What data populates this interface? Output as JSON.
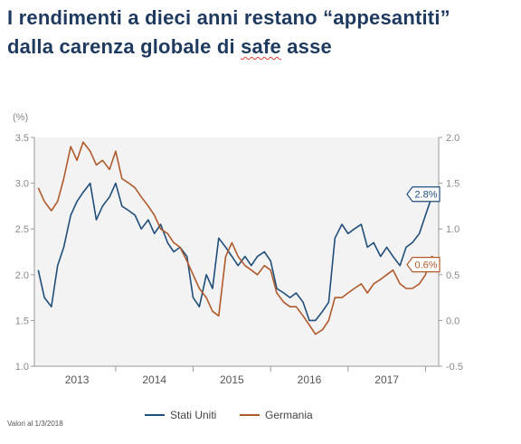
{
  "headline": {
    "line1": "I rendimenti a dieci anni restano “appesantiti”",
    "line2_part1": "dalla carenza globale di ",
    "line2_part2": "safe",
    "line2_part3": " asse"
  },
  "colors": {
    "title": "#1f3a5f",
    "us": "#1f4e79",
    "de": "#b05a2b",
    "plot_bg": "#f3f3f3",
    "axis": "#9a9a9a"
  },
  "chart_data": {
    "type": "line",
    "left_axis_unit": "(%)",
    "ylim_left": [
      1.0,
      3.5
    ],
    "ylim_right": [
      -0.5,
      2.0
    ],
    "left_ticks": [
      "3.5",
      "3.0",
      "2.5",
      "2.0",
      "1.5",
      "1.0"
    ],
    "right_ticks": [
      "2.0",
      "1.5",
      "1.0",
      "0.5",
      "0.0",
      "-0.5"
    ],
    "x_ticks": [
      "2013",
      "2014",
      "2015",
      "2016",
      "2017"
    ],
    "x_range": [
      2012.95,
      2018.17
    ],
    "grid": false,
    "legend_position": "bottom",
    "footnote": "Valori al 1/3/2018",
    "series": [
      {
        "name": "Stati Uniti",
        "axis": "left",
        "end_label": "2.8%",
        "x": [
          2013.0,
          2013.08,
          2013.17,
          2013.25,
          2013.33,
          2013.42,
          2013.5,
          2013.58,
          2013.67,
          2013.75,
          2013.83,
          2013.92,
          2014.0,
          2014.08,
          2014.17,
          2014.25,
          2014.33,
          2014.42,
          2014.5,
          2014.58,
          2014.67,
          2014.75,
          2014.83,
          2014.92,
          2015.0,
          2015.08,
          2015.17,
          2015.25,
          2015.33,
          2015.42,
          2015.5,
          2015.58,
          2015.67,
          2015.75,
          2015.83,
          2015.92,
          2016.0,
          2016.08,
          2016.17,
          2016.25,
          2016.33,
          2016.42,
          2016.5,
          2016.58,
          2016.67,
          2016.75,
          2016.83,
          2016.92,
          2017.0,
          2017.08,
          2017.17,
          2017.25,
          2017.33,
          2017.42,
          2017.5,
          2017.58,
          2017.67,
          2017.75,
          2017.83,
          2017.92,
          2018.0,
          2018.08,
          2018.17
        ],
        "values": [
          2.05,
          1.75,
          1.65,
          2.1,
          2.3,
          2.65,
          2.8,
          2.9,
          3.0,
          2.6,
          2.75,
          2.85,
          3.0,
          2.75,
          2.7,
          2.65,
          2.5,
          2.6,
          2.45,
          2.55,
          2.35,
          2.25,
          2.3,
          2.2,
          1.75,
          1.65,
          2.0,
          1.85,
          2.4,
          2.3,
          2.2,
          2.1,
          2.2,
          2.1,
          2.2,
          2.25,
          2.15,
          1.85,
          1.8,
          1.75,
          1.8,
          1.7,
          1.5,
          1.5,
          1.6,
          1.7,
          2.4,
          2.55,
          2.45,
          2.5,
          2.55,
          2.3,
          2.35,
          2.2,
          2.3,
          2.2,
          2.1,
          2.3,
          2.35,
          2.45,
          2.65,
          2.85,
          2.9
        ]
      },
      {
        "name": "Germania",
        "axis": "right",
        "end_label": "0.6%",
        "x": [
          2013.0,
          2013.08,
          2013.17,
          2013.25,
          2013.33,
          2013.42,
          2013.5,
          2013.58,
          2013.67,
          2013.75,
          2013.83,
          2013.92,
          2014.0,
          2014.08,
          2014.17,
          2014.25,
          2014.33,
          2014.42,
          2014.5,
          2014.58,
          2014.67,
          2014.75,
          2014.83,
          2014.92,
          2015.0,
          2015.08,
          2015.17,
          2015.25,
          2015.33,
          2015.42,
          2015.5,
          2015.58,
          2015.67,
          2015.75,
          2015.83,
          2015.92,
          2016.0,
          2016.08,
          2016.17,
          2016.25,
          2016.33,
          2016.42,
          2016.5,
          2016.58,
          2016.67,
          2016.75,
          2016.83,
          2016.92,
          2017.0,
          2017.08,
          2017.17,
          2017.25,
          2017.33,
          2017.42,
          2017.5,
          2017.58,
          2017.67,
          2017.75,
          2017.83,
          2017.92,
          2018.0,
          2018.08,
          2018.17
        ],
        "values": [
          1.45,
          1.3,
          1.2,
          1.3,
          1.55,
          1.9,
          1.75,
          1.95,
          1.85,
          1.7,
          1.75,
          1.65,
          1.85,
          1.55,
          1.5,
          1.45,
          1.35,
          1.25,
          1.15,
          1.0,
          0.95,
          0.85,
          0.8,
          0.65,
          0.5,
          0.35,
          0.25,
          0.1,
          0.05,
          0.7,
          0.85,
          0.7,
          0.6,
          0.55,
          0.5,
          0.6,
          0.55,
          0.3,
          0.2,
          0.15,
          0.15,
          0.05,
          -0.05,
          -0.15,
          -0.1,
          0.0,
          0.25,
          0.25,
          0.3,
          0.35,
          0.4,
          0.3,
          0.4,
          0.45,
          0.5,
          0.55,
          0.4,
          0.35,
          0.35,
          0.4,
          0.5,
          0.7,
          0.65
        ]
      }
    ]
  }
}
